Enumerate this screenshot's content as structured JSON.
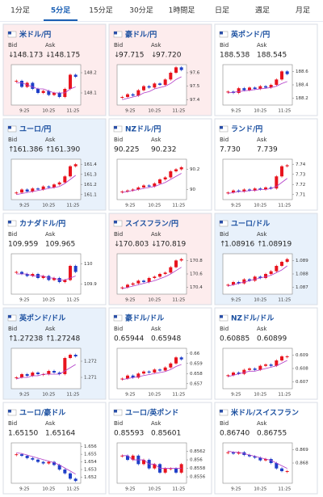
{
  "tabs": [
    "1分足",
    "5分足",
    "15分足",
    "30分足",
    "1時間足",
    "日足",
    "週足",
    "月足"
  ],
  "active_tab": 1,
  "labels": {
    "bid": "Bid",
    "ask": "Ask"
  },
  "time_labels": [
    "9:25",
    "10:25",
    "11:25"
  ],
  "colors": {
    "up": "#e8141e",
    "down": "#1f3fc8",
    "ma": "#b23cc8",
    "down_bg": "#fdeced",
    "up_bg": "#e8f1fb"
  },
  "cards": [
    {
      "name": "米ドル/円",
      "highlight": "down",
      "arrow": "↓",
      "bid": "148.173",
      "ask": "148.175",
      "chart": {
        "ylim": [
          148.04,
          148.24
        ],
        "yticks": [
          148.2,
          148.1
        ],
        "closes": [
          148.16,
          148.13,
          148.15,
          148.12,
          148.1,
          148.11,
          148.09,
          148.1,
          148.08,
          148.12,
          148.19,
          148.18
        ],
        "ma": [
          148.15,
          148.15,
          148.14,
          148.13,
          148.12,
          148.12,
          148.11,
          148.1,
          148.1,
          148.1,
          148.12,
          148.13
        ]
      }
    },
    {
      "name": "豪ドル/円",
      "highlight": "down",
      "arrow": "↓",
      "bid": "97.715",
      "ask": "97.720",
      "chart": {
        "ylim": [
          97.36,
          97.66
        ],
        "yticks": [
          97.6,
          97.5,
          97.4
        ],
        "closes": [
          97.42,
          97.44,
          97.43,
          97.47,
          97.5,
          97.49,
          97.52,
          97.51,
          97.55,
          97.6,
          97.64,
          97.62
        ],
        "ma": [
          97.4,
          97.41,
          97.42,
          97.43,
          97.45,
          97.46,
          97.48,
          97.49,
          97.5,
          97.52,
          97.55,
          97.57
        ]
      }
    },
    {
      "name": "英ポンド/円",
      "highlight": null,
      "arrow": null,
      "bid": "188.538",
      "ask": "188.545",
      "chart": {
        "ylim": [
          188.1,
          188.7
        ],
        "yticks": [
          188.6,
          188.4,
          188.2
        ],
        "closes": [
          188.3,
          188.28,
          188.35,
          188.32,
          188.36,
          188.34,
          188.38,
          188.36,
          188.4,
          188.48,
          188.6,
          188.56
        ],
        "ma": [
          188.28,
          188.29,
          188.3,
          188.31,
          188.32,
          188.33,
          188.34,
          188.35,
          188.36,
          188.38,
          188.42,
          188.45
        ]
      }
    },
    {
      "name": "ユーロ/円",
      "highlight": "up",
      "arrow": "↑",
      "bid": "161.386",
      "ask": "161.390",
      "chart": {
        "ylim": [
          161.05,
          161.45
        ],
        "yticks": [
          161.4,
          161.3,
          161.2,
          161.1
        ],
        "closes": [
          161.12,
          161.15,
          161.13,
          161.16,
          161.15,
          161.18,
          161.17,
          161.2,
          161.22,
          161.28,
          161.38,
          161.4
        ],
        "ma": [
          161.1,
          161.11,
          161.12,
          161.13,
          161.14,
          161.15,
          161.16,
          161.17,
          161.18,
          161.21,
          161.25,
          161.29
        ]
      }
    },
    {
      "name": "NZドル/円",
      "highlight": null,
      "arrow": null,
      "bid": "90.225",
      "ask": "90.232",
      "chart": {
        "ylim": [
          89.9,
          90.3
        ],
        "yticks": [
          90.2,
          90
        ],
        "closes": [
          89.98,
          89.99,
          90.0,
          90.02,
          90.04,
          90.03,
          90.06,
          90.1,
          90.12,
          90.18,
          90.2,
          90.22
        ],
        "ma": [
          89.97,
          89.98,
          89.99,
          90.0,
          90.01,
          90.02,
          90.03,
          90.05,
          90.07,
          90.1,
          90.13,
          90.16
        ]
      }
    },
    {
      "name": "ランド/円",
      "highlight": null,
      "arrow": null,
      "bid": "7.730",
      "ask": "7.739",
      "chart": {
        "ylim": [
          7.705,
          7.745
        ],
        "yticks": [
          7.74,
          7.73,
          7.72,
          7.71
        ],
        "closes": [
          7.712,
          7.714,
          7.713,
          7.715,
          7.714,
          7.716,
          7.715,
          7.717,
          7.716,
          7.728,
          7.738,
          7.739
        ],
        "ma": [
          7.711,
          7.712,
          7.713,
          7.713,
          7.714,
          7.714,
          7.715,
          7.715,
          7.716,
          7.718,
          7.722,
          7.726
        ]
      }
    },
    {
      "name": "カナダドル/円",
      "highlight": null,
      "arrow": null,
      "bid": "109.959",
      "ask": "109.965",
      "chart": {
        "ylim": [
          109.85,
          110.05
        ],
        "yticks": [
          110,
          109.9
        ],
        "closes": [
          109.96,
          109.95,
          109.94,
          109.95,
          109.93,
          109.94,
          109.92,
          109.93,
          109.91,
          109.92,
          109.99,
          109.96
        ],
        "ma": [
          109.95,
          109.95,
          109.95,
          109.94,
          109.94,
          109.94,
          109.93,
          109.93,
          109.92,
          109.92,
          109.93,
          109.94
        ]
      }
    },
    {
      "name": "スイスフラン/円",
      "highlight": "down",
      "arrow": "↓",
      "bid": "170.803",
      "ask": "170.819",
      "chart": {
        "ylim": [
          170.3,
          170.9
        ],
        "yticks": [
          170.8,
          170.6,
          170.4
        ],
        "closes": [
          170.4,
          170.44,
          170.46,
          170.5,
          170.48,
          170.54,
          170.56,
          170.6,
          170.62,
          170.7,
          170.8,
          170.82
        ],
        "ma": [
          170.38,
          170.4,
          170.42,
          170.44,
          170.46,
          170.48,
          170.5,
          170.53,
          170.56,
          170.6,
          170.65,
          170.7
        ]
      }
    },
    {
      "name": "ユーロ/ドル",
      "highlight": "up",
      "arrow": "↑",
      "bid": "1.08916",
      "ask": "1.08919",
      "chart": {
        "ylim": [
          1.0865,
          1.0895
        ],
        "yticks": [
          1.089,
          1.088,
          1.087
        ],
        "closes": [
          1.0872,
          1.0874,
          1.0873,
          1.0876,
          1.0875,
          1.0878,
          1.0877,
          1.088,
          1.0882,
          1.0886,
          1.0889,
          1.0891
        ],
        "ma": [
          1.0871,
          1.0872,
          1.0873,
          1.0874,
          1.0875,
          1.0876,
          1.0877,
          1.0878,
          1.0879,
          1.0881,
          1.0883,
          1.0886
        ]
      }
    },
    {
      "name": "英ポンド/ドル",
      "highlight": "up",
      "arrow": "↑",
      "bid": "1.27238",
      "ask": "1.27248",
      "chart": {
        "ylim": [
          1.2703,
          1.2728
        ],
        "yticks": [
          1.272,
          1.271
        ],
        "closes": [
          1.271,
          1.2712,
          1.2711,
          1.2713,
          1.2712,
          1.2712,
          1.2714,
          1.2713,
          1.2712,
          1.2722,
          1.2724,
          1.2723
        ],
        "ma": [
          1.2709,
          1.271,
          1.271,
          1.2711,
          1.2711,
          1.2712,
          1.2712,
          1.2712,
          1.2712,
          1.2714,
          1.2716,
          1.2718
        ]
      }
    },
    {
      "name": "豪ドル/ドル",
      "highlight": null,
      "arrow": null,
      "bid": "0.65944",
      "ask": "0.65948",
      "chart": {
        "ylim": [
          0.6565,
          0.6605
        ],
        "yticks": [
          0.66,
          0.659,
          0.658,
          0.657
        ],
        "closes": [
          0.6575,
          0.6578,
          0.6576,
          0.658,
          0.6582,
          0.6581,
          0.6584,
          0.6583,
          0.6586,
          0.659,
          0.6596,
          0.6594
        ],
        "ma": [
          0.6574,
          0.6575,
          0.6576,
          0.6577,
          0.6578,
          0.6579,
          0.658,
          0.6581,
          0.6582,
          0.6584,
          0.6587,
          0.6589
        ]
      }
    },
    {
      "name": "NZドル/ドル",
      "highlight": null,
      "arrow": null,
      "bid": "0.60885",
      "ask": "0.60899",
      "chart": {
        "ylim": [
          0.6065,
          0.6095
        ],
        "yticks": [
          0.609,
          0.608,
          0.607
        ],
        "closes": [
          0.6075,
          0.6077,
          0.6076,
          0.6079,
          0.608,
          0.6079,
          0.6082,
          0.6083,
          0.6082,
          0.6086,
          0.6089,
          0.6089
        ],
        "ma": [
          0.6074,
          0.6075,
          0.6076,
          0.6077,
          0.6078,
          0.6078,
          0.6079,
          0.608,
          0.6081,
          0.6082,
          0.6084,
          0.6086
        ]
      }
    },
    {
      "name": "ユーロ/豪ドル",
      "highlight": null,
      "arrow": null,
      "bid": "1.65150",
      "ask": "1.65164",
      "chart": {
        "ylim": [
          1.6512,
          1.6565
        ],
        "yticks": [
          1.656,
          1.655,
          1.654,
          1.653,
          1.652
        ],
        "closes": [
          1.655,
          1.6548,
          1.6545,
          1.6543,
          1.654,
          1.6538,
          1.654,
          1.6536,
          1.653,
          1.6525,
          1.6518,
          1.6515
        ],
        "ma": [
          1.6552,
          1.6551,
          1.6549,
          1.6547,
          1.6545,
          1.6543,
          1.6541,
          1.6539,
          1.6536,
          1.6532,
          1.6528,
          1.6524
        ]
      }
    },
    {
      "name": "ユーロ/英ポンド",
      "highlight": null,
      "arrow": null,
      "bid": "0.85593",
      "ask": "0.85601",
      "chart": {
        "ylim": [
          0.85545,
          0.8564
        ],
        "yticks": [
          0.8562,
          0.856,
          0.8558,
          0.8556
        ],
        "closes": [
          0.8561,
          0.856,
          0.8561,
          0.8559,
          0.856,
          0.8558,
          0.8559,
          0.8557,
          0.8558,
          0.8558,
          0.8557,
          0.8559
        ],
        "ma": [
          0.8561,
          0.8561,
          0.856,
          0.856,
          0.856,
          0.8559,
          0.8559,
          0.8558,
          0.8558,
          0.8558,
          0.8558,
          0.8558
        ]
      }
    },
    {
      "name": "米ドル/スイスフラン",
      "highlight": null,
      "arrow": null,
      "bid": "0.86740",
      "ask": "0.86755",
      "chart": {
        "ylim": [
          0.8665,
          0.8695
        ],
        "yticks": [
          0.869,
          0.868
        ],
        "closes": [
          0.8688,
          0.8687,
          0.8688,
          0.8686,
          0.8685,
          0.8684,
          0.8682,
          0.8683,
          0.868,
          0.8676,
          0.8674,
          0.8674
        ],
        "ma": [
          0.8689,
          0.8688,
          0.8688,
          0.8687,
          0.8686,
          0.8685,
          0.8684,
          0.8683,
          0.8682,
          0.868,
          0.8678,
          0.8676
        ]
      }
    }
  ]
}
